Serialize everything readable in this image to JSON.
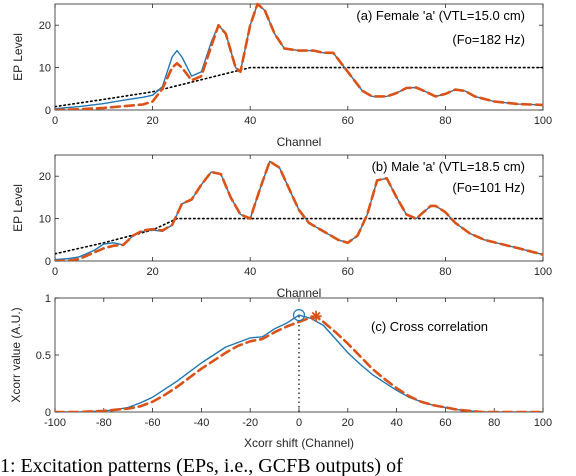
{
  "colors": {
    "blue": "#1f77b4",
    "orange": "#d95319",
    "dotted": "#000000",
    "axis": "#262626"
  },
  "chart_data": [
    {
      "type": "line",
      "annotation_lines": [
        "(a) Female 'a' (VTL=15.0 cm)",
        "(Fo=182 Hz)"
      ],
      "xlabel": "Channel",
      "ylabel": "EP Level",
      "xlim": [
        0,
        100
      ],
      "ylim": [
        0,
        25
      ],
      "xticks": [
        0,
        20,
        40,
        60,
        80,
        100
      ],
      "yticks": [
        0,
        10,
        20
      ],
      "series": [
        {
          "style": "solid-blue",
          "x": [
            0,
            5,
            10,
            15,
            18,
            20,
            22,
            24,
            25,
            26,
            28,
            30,
            32,
            33.5,
            35,
            37,
            38,
            40,
            41.5,
            43,
            45,
            47,
            50,
            53,
            55,
            57,
            60,
            63,
            65,
            68,
            70,
            72,
            74,
            76,
            78,
            80,
            82,
            84,
            86,
            90,
            95,
            100
          ],
          "y": [
            0.3,
            0.8,
            1.5,
            2.5,
            3.0,
            3.5,
            5.5,
            12.5,
            14,
            12.5,
            8,
            9,
            16,
            20,
            18,
            10,
            9,
            20,
            25,
            23.5,
            18,
            14.5,
            14,
            14,
            13.5,
            13.5,
            9,
            4.5,
            3.2,
            3.2,
            4.0,
            5.2,
            5.3,
            4.3,
            3.2,
            3.8,
            4.8,
            4.5,
            3.2,
            2.0,
            1.4,
            1.2
          ]
        },
        {
          "style": "dashed-orange",
          "x": [
            0,
            5,
            10,
            15,
            18,
            20,
            22,
            24,
            25,
            26,
            28,
            30,
            32,
            33.5,
            35,
            37,
            38,
            40,
            41.5,
            43,
            45,
            47,
            50,
            53,
            55,
            57,
            60,
            63,
            65,
            68,
            70,
            72,
            74,
            76,
            78,
            80,
            82,
            84,
            86,
            90,
            95,
            100
          ],
          "y": [
            0,
            0.2,
            0.5,
            1.0,
            1.3,
            2.0,
            5.0,
            10,
            11,
            10,
            7,
            8,
            15,
            20,
            18,
            10,
            9,
            20,
            25,
            23.5,
            18,
            14.5,
            14,
            14,
            13.5,
            13.5,
            9,
            4.5,
            3.2,
            3.2,
            4.0,
            5.2,
            5.3,
            4.3,
            3.2,
            3.8,
            4.8,
            4.5,
            3.2,
            2.0,
            1.4,
            1.2
          ]
        },
        {
          "style": "dotted-black",
          "x": [
            0,
            10,
            20,
            40,
            100
          ],
          "y": [
            0.8,
            2.5,
            4.3,
            10,
            10
          ]
        }
      ]
    },
    {
      "type": "line",
      "annotation_lines": [
        "(b) Male 'a' (VTL=18.5 cm)",
        "(Fo=101 Hz)"
      ],
      "xlabel": "Channel",
      "ylabel": "EP Level",
      "xlim": [
        0,
        100
      ],
      "ylim": [
        0,
        25
      ],
      "xticks": [
        0,
        20,
        40,
        60,
        80,
        100
      ],
      "yticks": [
        0,
        10,
        20
      ],
      "series": [
        {
          "style": "solid-blue",
          "x": [
            0,
            3,
            5,
            8,
            10,
            12,
            14,
            16,
            18,
            20,
            22,
            24,
            26,
            28,
            30,
            32,
            34,
            36,
            38,
            40,
            42,
            44,
            46,
            48,
            50,
            52,
            55,
            58,
            60,
            62,
            64,
            66,
            68,
            70,
            72,
            74,
            76,
            77,
            78,
            80,
            82,
            85,
            88,
            90,
            95,
            100
          ],
          "y": [
            0.3,
            0.6,
            1.0,
            2.5,
            4.0,
            4.3,
            3.8,
            6.0,
            7.0,
            7.3,
            7.0,
            8.5,
            13.5,
            14.5,
            18,
            21,
            20.5,
            15,
            11,
            10,
            17,
            23.5,
            22,
            17,
            12,
            9,
            7,
            5,
            4.3,
            6.0,
            11,
            19,
            19.5,
            15,
            11,
            10,
            12,
            13,
            13,
            11.5,
            9.0,
            6.5,
            5.0,
            4.4,
            3.0,
            1.5
          ]
        },
        {
          "style": "dashed-orange",
          "x": [
            0,
            3,
            5,
            8,
            10,
            12,
            14,
            16,
            18,
            20,
            22,
            24,
            26,
            28,
            30,
            32,
            34,
            36,
            38,
            40,
            42,
            44,
            46,
            48,
            50,
            52,
            55,
            58,
            60,
            62,
            64,
            66,
            68,
            70,
            72,
            74,
            76,
            77,
            78,
            80,
            82,
            85,
            88,
            90,
            95,
            100
          ],
          "y": [
            0.0,
            0.1,
            0.5,
            2.0,
            3.0,
            3.6,
            3.8,
            6.0,
            7.2,
            7.5,
            7.2,
            8.5,
            13.5,
            14.5,
            18,
            21,
            20.5,
            15,
            11,
            10,
            17,
            23.5,
            22,
            17,
            12,
            9,
            7,
            5,
            4.3,
            6.0,
            11,
            19,
            19.5,
            15,
            11,
            10,
            12,
            13,
            13,
            11.5,
            9.0,
            6.5,
            5.0,
            4.4,
            3.0,
            1.5
          ]
        },
        {
          "style": "dotted-black",
          "x": [
            0,
            10,
            20,
            25,
            100
          ],
          "y": [
            1.7,
            4.3,
            7.3,
            10,
            10
          ]
        }
      ]
    },
    {
      "type": "line",
      "annotation_lines": [
        "(c) Cross correlation"
      ],
      "xlabel": "Xcorr shift  (Channel)",
      "ylabel": "Xcorr value (A.U.)",
      "xlim": [
        -100,
        100
      ],
      "ylim": [
        0,
        1
      ],
      "xticks": [
        -100,
        -80,
        -60,
        -40,
        -20,
        0,
        20,
        40,
        60,
        80,
        100
      ],
      "yticks": [
        0,
        0.5,
        1
      ],
      "series": [
        {
          "style": "solid-blue",
          "x": [
            -100,
            -90,
            -80,
            -75,
            -70,
            -65,
            -60,
            -55,
            -50,
            -45,
            -40,
            -35,
            -30,
            -25,
            -20,
            -15,
            -10,
            -5,
            0,
            5,
            10,
            15,
            20,
            25,
            30,
            35,
            40,
            45,
            50,
            55,
            60,
            65,
            70,
            75,
            80,
            90,
            100
          ],
          "y": [
            0,
            0,
            0.01,
            0.02,
            0.04,
            0.08,
            0.13,
            0.2,
            0.27,
            0.35,
            0.43,
            0.5,
            0.57,
            0.61,
            0.65,
            0.66,
            0.73,
            0.78,
            0.85,
            0.82,
            0.76,
            0.64,
            0.52,
            0.42,
            0.33,
            0.26,
            0.19,
            0.13,
            0.09,
            0.06,
            0.04,
            0.02,
            0.01,
            0,
            0,
            0,
            0
          ]
        },
        {
          "style": "dashed-orange",
          "x": [
            -100,
            -90,
            -80,
            -75,
            -70,
            -65,
            -60,
            -55,
            -50,
            -45,
            -40,
            -35,
            -30,
            -25,
            -20,
            -15,
            -10,
            -5,
            0,
            5,
            7,
            10,
            15,
            20,
            25,
            30,
            35,
            40,
            45,
            50,
            55,
            60,
            65,
            70,
            75,
            80,
            90,
            100
          ],
          "y": [
            0,
            0,
            0.01,
            0.02,
            0.03,
            0.05,
            0.09,
            0.15,
            0.22,
            0.3,
            0.38,
            0.45,
            0.52,
            0.58,
            0.62,
            0.64,
            0.7,
            0.75,
            0.79,
            0.83,
            0.84,
            0.79,
            0.7,
            0.6,
            0.49,
            0.38,
            0.29,
            0.21,
            0.14,
            0.09,
            0.06,
            0.04,
            0.02,
            0.01,
            0,
            0,
            0,
            0
          ]
        }
      ],
      "markers": [
        {
          "type": "circle",
          "x": 0,
          "y": 0.85,
          "color": "blue"
        },
        {
          "type": "asterisk",
          "x": 7,
          "y": 0.84,
          "color": "orange"
        }
      ],
      "guide": {
        "x": 0,
        "y_top": 0.85
      }
    }
  ],
  "caption": "1: Excitation patterns (EPs, i.e., GCFB outputs) of"
}
